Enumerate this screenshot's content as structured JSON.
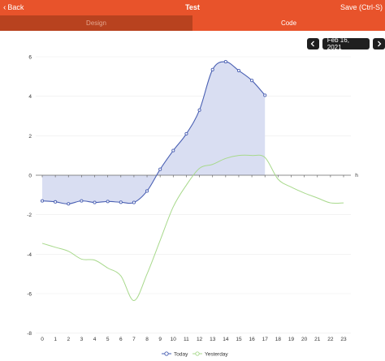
{
  "navbar": {
    "back_label": "Back",
    "title": "Test",
    "save_label": "Save (Ctrl-S)"
  },
  "tabs": [
    {
      "label": "Design"
    },
    {
      "label": "Code"
    }
  ],
  "date_picker": {
    "date": "Feb 16, 2021"
  },
  "colors": {
    "today": "#4a60b3",
    "today_fill": "#d9def2",
    "yesterday": "#a8d98c",
    "navbar": "#e8532b",
    "tab_active_dark": "#b8421f"
  },
  "chart_data": {
    "type": "line",
    "xlabel": "h",
    "ylabel": "",
    "xlim": [
      0,
      23
    ],
    "ylim": [
      -8,
      6
    ],
    "x_ticks": [
      "0",
      "1",
      "2",
      "3",
      "4",
      "5",
      "6",
      "7",
      "8",
      "9",
      "10",
      "11",
      "12",
      "13",
      "14",
      "15",
      "16",
      "17",
      "18",
      "19",
      "20",
      "21",
      "22",
      "23"
    ],
    "y_ticks": [
      -8,
      -6,
      -4,
      -2,
      0,
      2,
      4,
      6
    ],
    "legend_position": "bottom",
    "series": [
      {
        "name": "Today",
        "x": [
          0,
          1,
          2,
          3,
          4,
          5,
          6,
          7,
          8,
          9,
          10,
          11,
          12,
          13,
          14,
          15,
          16,
          17
        ],
        "values": [
          -1.3,
          -1.35,
          -1.45,
          -1.3,
          -1.38,
          -1.33,
          -1.37,
          -1.38,
          -0.8,
          0.3,
          1.25,
          2.1,
          3.3,
          5.35,
          5.75,
          5.3,
          4.8,
          4.05
        ],
        "area": true,
        "markers": true
      },
      {
        "name": "Yesterday",
        "x": [
          0,
          1,
          2,
          3,
          4,
          5,
          6,
          7,
          8,
          9,
          10,
          11,
          12,
          13,
          14,
          15,
          16,
          17,
          18,
          19,
          20,
          21,
          22,
          23
        ],
        "values": [
          -3.45,
          -3.65,
          -3.85,
          -4.25,
          -4.3,
          -4.7,
          -5.1,
          -6.35,
          -5.0,
          -3.3,
          -1.6,
          -0.5,
          0.35,
          0.55,
          0.85,
          1.0,
          1.0,
          0.9,
          -0.2,
          -0.6,
          -0.9,
          -1.15,
          -1.4,
          -1.4
        ],
        "area": false,
        "markers": false
      }
    ]
  }
}
